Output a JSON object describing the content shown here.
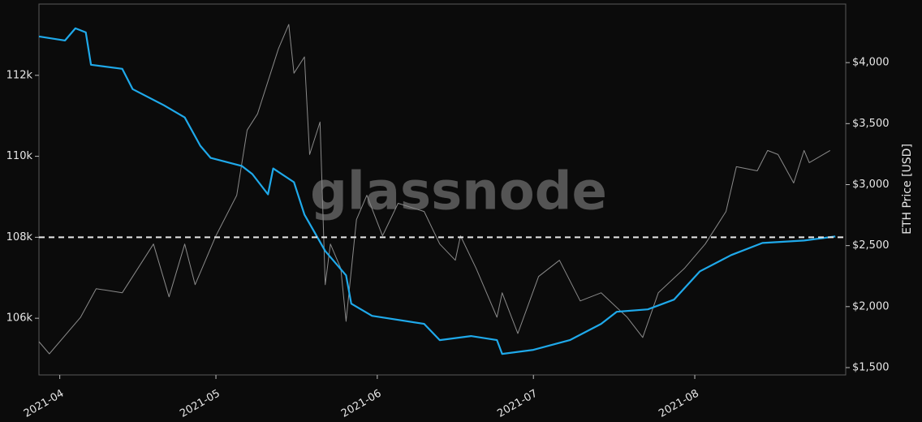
{
  "chart_data": {
    "type": "line",
    "watermark": "glassnode",
    "y2_label": "ETH Price [USD]",
    "background": "#0b0b0b",
    "xlim": [
      -4,
      151
    ],
    "xticks": [
      {
        "value": 0,
        "label": "2021-04"
      },
      {
        "value": 30,
        "label": "2021-05"
      },
      {
        "value": 61,
        "label": "2021-06"
      },
      {
        "value": 91,
        "label": "2021-07"
      },
      {
        "value": 122,
        "label": "2021-08"
      }
    ],
    "ylim": [
      104600,
      113760
    ],
    "yticks": [
      {
        "value": 106000,
        "label": "106k"
      },
      {
        "value": 108000,
        "label": "108k"
      },
      {
        "value": 110000,
        "label": "110k"
      },
      {
        "value": 112000,
        "label": "112k"
      }
    ],
    "y2lim": [
      1440,
      4480
    ],
    "y2ticks": [
      {
        "value": 1500,
        "label": "$1,500"
      },
      {
        "value": 2000,
        "label": "$2,000"
      },
      {
        "value": 2500,
        "label": "$2,500"
      },
      {
        "value": 3000,
        "label": "$3,000"
      },
      {
        "value": 3500,
        "label": "$3,500"
      },
      {
        "value": 4000,
        "label": "$4,000"
      }
    ],
    "hline": {
      "value": 108000,
      "color": "#e8e8e8",
      "dashed": true
    },
    "series": [
      {
        "color": "#1fa9ea",
        "axis": "y",
        "x": [
          -4,
          1,
          3,
          5,
          6,
          12,
          14,
          20,
          24,
          27,
          29,
          35,
          37,
          40,
          41,
          45,
          47,
          51,
          55,
          56,
          60,
          70,
          73,
          79,
          84,
          85,
          91,
          98,
          104,
          107,
          113,
          118,
          123,
          129,
          135,
          143,
          149
        ],
        "values": [
          112960,
          112860,
          113160,
          113060,
          112260,
          112160,
          111660,
          111260,
          110960,
          110260,
          109960,
          109760,
          109560,
          109060,
          109700,
          109360,
          108560,
          107660,
          107060,
          106360,
          106060,
          105860,
          105460,
          105560,
          105460,
          105120,
          105220,
          105460,
          105860,
          106160,
          106220,
          106460,
          107160,
          107560,
          107860,
          107920,
          108020
        ]
      },
      {
        "color": "#8a8a8a",
        "axis": "y2",
        "x": [
          -4,
          -2,
          4,
          7,
          12,
          18,
          21,
          24,
          26,
          30,
          34,
          36,
          38,
          41,
          42,
          44,
          45,
          47,
          48,
          50,
          51,
          52,
          54,
          55,
          57,
          59,
          62,
          65,
          70,
          73,
          76,
          77,
          80,
          84,
          85,
          88,
          92,
          96,
          100,
          104,
          109,
          112,
          115,
          120,
          124,
          128,
          130,
          134,
          136,
          138,
          141,
          143,
          144,
          148
        ],
        "values": [
          1713,
          1613,
          1913,
          2147,
          2113,
          2513,
          2080,
          2513,
          2180,
          2580,
          2913,
          3447,
          3580,
          3980,
          4113,
          4313,
          3913,
          4047,
          3247,
          3513,
          2180,
          2513,
          2313,
          1880,
          2713,
          2913,
          2580,
          2847,
          2780,
          2513,
          2380,
          2580,
          2313,
          1913,
          2113,
          1780,
          2247,
          2380,
          2047,
          2113,
          1913,
          1747,
          2113,
          2313,
          2513,
          2780,
          3147,
          3113,
          3280,
          3247,
          3013,
          3280,
          3180,
          3280
        ]
      }
    ]
  }
}
